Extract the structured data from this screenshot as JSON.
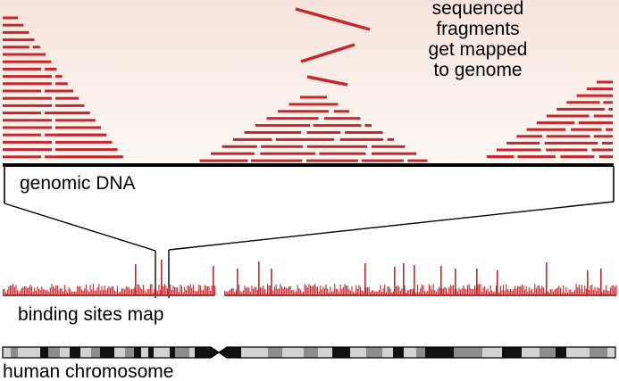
{
  "title_text": {
    "line1": "sequenced",
    "line2": "fragments",
    "line3": "get mapped",
    "line4": "to genome"
  },
  "labels": {
    "genomic_dna": "genomic DNA",
    "binding_sites_map": "binding sites map",
    "human_chromosome": "human chromosome"
  },
  "colors": {
    "fragment": "#c8262a",
    "background_top": "#f6e4dc",
    "background_bottom": "#fdf8f4",
    "baseline": "#000000",
    "chromosome_dark": "#111111",
    "chromosome_mid": "#8c8c8c",
    "chromosome_light": "#d2d2d2"
  }
}
